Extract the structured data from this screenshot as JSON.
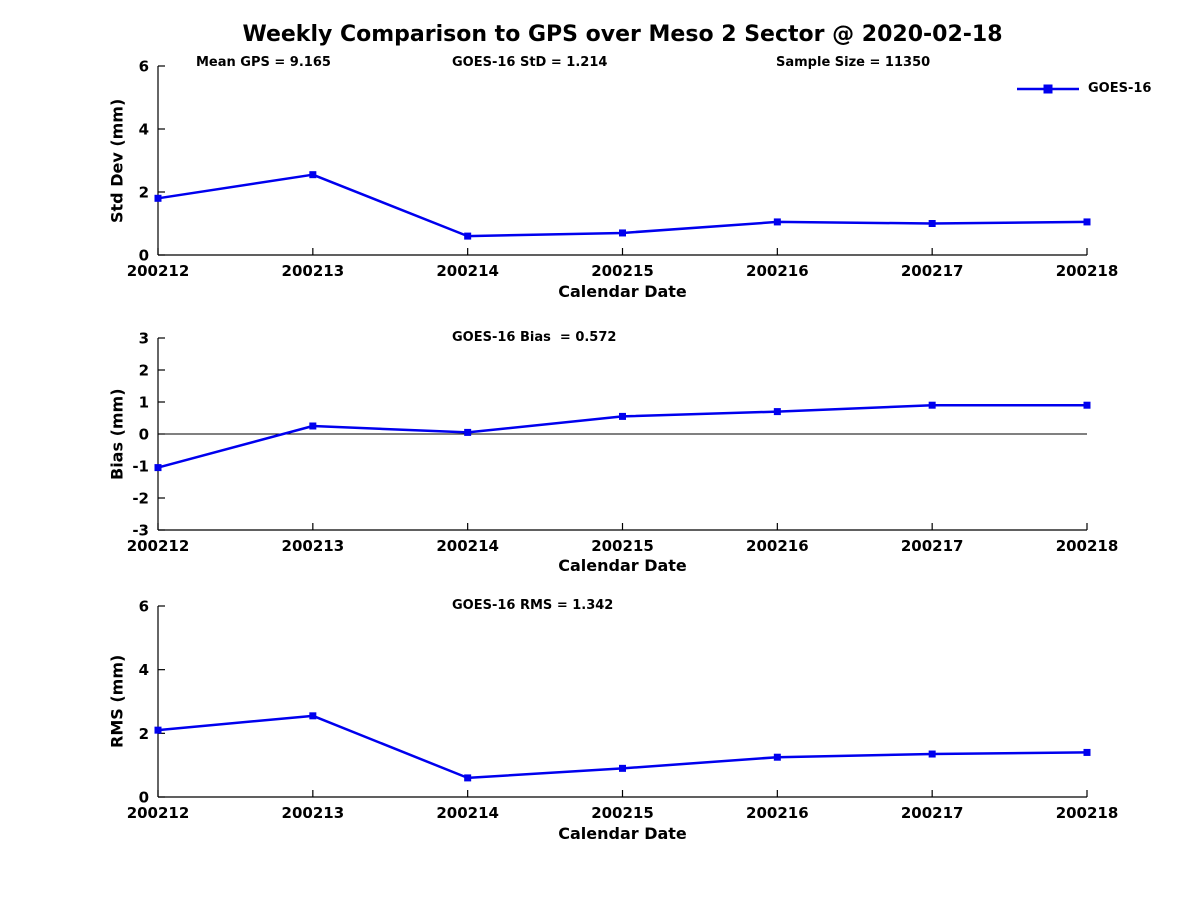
{
  "title": "Weekly Comparison to GPS over Meso 2 Sector @ 2020-02-18",
  "legend": {
    "series": "GOES-16"
  },
  "colors": {
    "line": "#0000ee",
    "axis": "#000000",
    "background": "#ffffff"
  },
  "chart_data": [
    {
      "type": "line",
      "id": "std-dev",
      "annotations": [
        "Mean GPS = 9.165",
        "GOES-16 StD = 1.214",
        "Sample Size = 11350"
      ],
      "categories": [
        "200212",
        "200213",
        "200214",
        "200215",
        "200216",
        "200217",
        "200218"
      ],
      "series": [
        {
          "name": "GOES-16",
          "values": [
            1.8,
            2.55,
            0.6,
            0.7,
            1.05,
            1.0,
            1.05
          ]
        }
      ],
      "xlabel": "Calendar Date",
      "ylabel": "Std Dev (mm)",
      "ylim": [
        0,
        6
      ],
      "yticks": [
        0,
        2,
        4,
        6
      ],
      "zero_line": false,
      "grid": false,
      "legend_position": "top-right"
    },
    {
      "type": "line",
      "id": "bias",
      "annotations": [
        "GOES-16 Bias  = 0.572"
      ],
      "categories": [
        "200212",
        "200213",
        "200214",
        "200215",
        "200216",
        "200217",
        "200218"
      ],
      "series": [
        {
          "name": "GOES-16",
          "values": [
            -1.05,
            0.25,
            0.05,
            0.55,
            0.7,
            0.9,
            0.9
          ]
        }
      ],
      "xlabel": "Calendar Date",
      "ylabel": "Bias (mm)",
      "ylim": [
        -3,
        3
      ],
      "yticks": [
        -3,
        -2,
        -1,
        0,
        1,
        2,
        3
      ],
      "zero_line": true,
      "grid": false
    },
    {
      "type": "line",
      "id": "rms",
      "annotations": [
        "GOES-16 RMS = 1.342"
      ],
      "categories": [
        "200212",
        "200213",
        "200214",
        "200215",
        "200216",
        "200217",
        "200218"
      ],
      "series": [
        {
          "name": "GOES-16",
          "values": [
            2.1,
            2.55,
            0.6,
            0.9,
            1.25,
            1.35,
            1.4
          ]
        }
      ],
      "xlabel": "Calendar Date",
      "ylabel": "RMS (mm)",
      "ylim": [
        0,
        6
      ],
      "yticks": [
        0,
        2,
        4,
        6
      ],
      "zero_line": false,
      "grid": false
    }
  ]
}
